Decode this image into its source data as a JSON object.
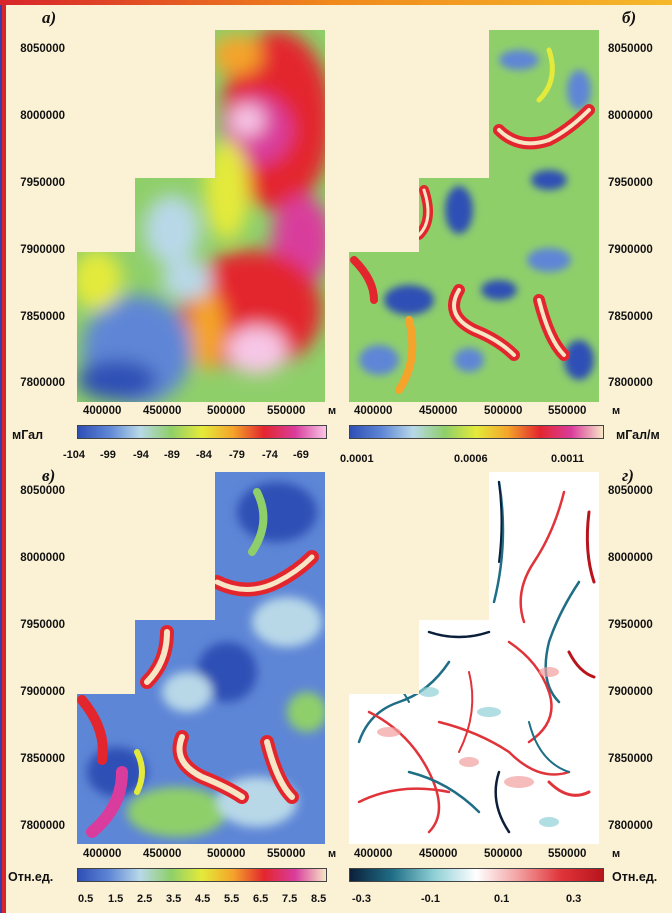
{
  "panels": [
    {
      "id": "a",
      "letter": "а)",
      "y_ticks": [
        "8050000",
        "8000000",
        "7950000",
        "7900000",
        "7850000",
        "7800000"
      ],
      "x_ticks": [
        "400000",
        "450000",
        "500000",
        "550000"
      ],
      "x_unit": "м",
      "colorbar": {
        "label": "мГал",
        "ticks": [
          "-104",
          "-99",
          "-94",
          "-89",
          "-84",
          "-79",
          "-74",
          "-69"
        ],
        "colors": [
          "#2f4fb5",
          "#5e86d6",
          "#b8d8e8",
          "#8fcf6a",
          "#e4ea3a",
          "#f4a42a",
          "#e3262e",
          "#d93c9c",
          "#f7c6e6"
        ]
      }
    },
    {
      "id": "b",
      "letter": "б)",
      "y_ticks": [
        "8050000",
        "8000000",
        "7950000",
        "7900000",
        "7850000",
        "7800000"
      ],
      "x_ticks": [
        "400000",
        "450000",
        "500000",
        "550000"
      ],
      "x_unit": "м",
      "colorbar": {
        "label": "мГал/м",
        "ticks": [
          "0.0001",
          "0.0006",
          "0.0011"
        ],
        "colors": [
          "#2f4fb5",
          "#5e86d6",
          "#b8d8e8",
          "#8fcf6a",
          "#e4ea3a",
          "#f4a42a",
          "#e3262e",
          "#d93c9c",
          "#f7e6c6"
        ]
      }
    },
    {
      "id": "v",
      "letter": "в)",
      "y_ticks": [
        "8050000",
        "8000000",
        "7950000",
        "7900000",
        "7850000",
        "7800000"
      ],
      "x_ticks": [
        "400000",
        "450000",
        "500000",
        "550000"
      ],
      "x_unit": "м",
      "colorbar": {
        "label": "Отн.ед.",
        "ticks": [
          "0.5",
          "1.5",
          "2.5",
          "3.5",
          "4.5",
          "5.5",
          "6.5",
          "7.5",
          "8.5"
        ],
        "colors": [
          "#2f4fb5",
          "#5e86d6",
          "#b8d8e8",
          "#8fcf6a",
          "#e4ea3a",
          "#f4a42a",
          "#e3262e",
          "#d93c9c",
          "#f7e6c6"
        ]
      }
    },
    {
      "id": "g",
      "letter": "г)",
      "y_ticks": [
        "8050000",
        "8000000",
        "7950000",
        "7900000",
        "7850000",
        "7800000"
      ],
      "x_ticks": [
        "400000",
        "450000",
        "500000",
        "550000"
      ],
      "x_unit": "м",
      "colorbar": {
        "label": "Отн.ед.",
        "ticks": [
          "-0.3",
          "-0.1",
          "0.1",
          "0.3"
        ],
        "colors": [
          "#0c1f3a",
          "#1f6e86",
          "#8fd0d6",
          "#ffffff",
          "#f2a0a0",
          "#e0343a",
          "#b8141c"
        ]
      }
    }
  ]
}
